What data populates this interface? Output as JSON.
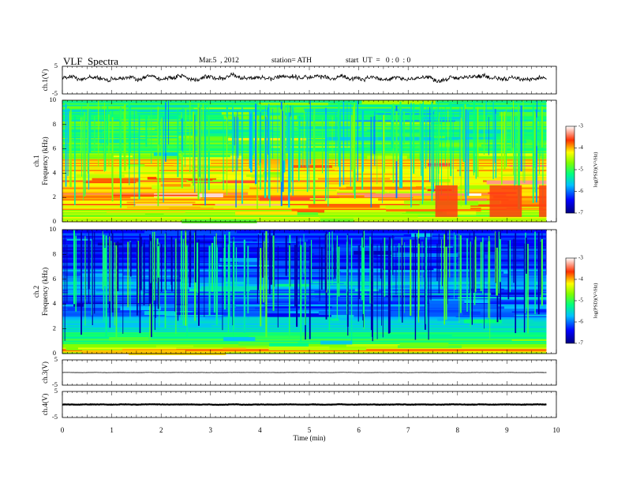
{
  "header": {
    "title": "VLF  Spectra",
    "date": "Mar.5  , 2012",
    "station": "station= ATH",
    "start": "start  UT  =   0 : 0  : 0"
  },
  "chart_data": [
    {
      "type": "line",
      "ylabel": "ch.1(V)",
      "ylim": [
        -5,
        5
      ],
      "yticks": [
        "5",
        "-5"
      ],
      "xlim": [
        0,
        10
      ],
      "x_end": 9.8,
      "level": 0.75,
      "amplitude": 1.1,
      "color": "#000000"
    },
    {
      "type": "heatmap",
      "ylabel_1": "ch.1",
      "ylabel_2": "Frequency  (kHz)",
      "ylim": [
        0,
        10
      ],
      "yticks": [
        "0",
        "2",
        "4",
        "6",
        "8",
        "10"
      ],
      "xlim": [
        0,
        10
      ],
      "x_end": 9.8,
      "colorbar": {
        "ticks": [
          "-3",
          "-4",
          "-5",
          "-6",
          "-7"
        ],
        "range": [
          -7,
          -3
        ],
        "label": "log(PSD)(V²/Hz)"
      },
      "level_profile": [
        {
          "f": 0.0,
          "v": -4.2
        },
        {
          "f": 0.4,
          "v": -4.6
        },
        {
          "f": 1.0,
          "v": -4.4
        },
        {
          "f": 2.0,
          "v": -3.9
        },
        {
          "f": 3.0,
          "v": -4.0
        },
        {
          "f": 4.0,
          "v": -4.4
        },
        {
          "f": 4.8,
          "v": -4.0
        },
        {
          "f": 5.2,
          "v": -4.7
        },
        {
          "f": 6.0,
          "v": -5.0
        },
        {
          "f": 7.0,
          "v": -5.2
        },
        {
          "f": 8.5,
          "v": -5.3
        },
        {
          "f": 10.0,
          "v": -5.2
        }
      ]
    },
    {
      "type": "heatmap",
      "ylabel_1": "ch.2",
      "ylabel_2": "Frequency  (kHz)",
      "ylim": [
        0,
        10
      ],
      "yticks": [
        "0",
        "2",
        "4",
        "6",
        "8",
        "10"
      ],
      "xlim": [
        0,
        10
      ],
      "x_end": 9.8,
      "colorbar": {
        "ticks": [
          "-3",
          "-4",
          "-5",
          "-6",
          "-7"
        ],
        "range": [
          -7,
          -3
        ],
        "label": "log(PSD)(V²/Hz)"
      },
      "level_profile": [
        {
          "f": 0.0,
          "v": -4.6
        },
        {
          "f": 0.3,
          "v": -3.6
        },
        {
          "f": 0.6,
          "v": -4.8
        },
        {
          "f": 1.5,
          "v": -5.3
        },
        {
          "f": 2.5,
          "v": -5.7
        },
        {
          "f": 3.5,
          "v": -6.0
        },
        {
          "f": 4.5,
          "v": -6.2
        },
        {
          "f": 5.5,
          "v": -5.8
        },
        {
          "f": 6.5,
          "v": -6.2
        },
        {
          "f": 8.0,
          "v": -6.4
        },
        {
          "f": 10.0,
          "v": -6.2
        }
      ]
    },
    {
      "type": "line",
      "ylabel": "ch.3(V)",
      "ylim": [
        -5,
        5
      ],
      "yticks": [
        "5",
        "-5"
      ],
      "xlim": [
        0,
        10
      ],
      "x_end": 9.8,
      "level": 0.0,
      "amplitude": 0.06,
      "color": "#000000"
    },
    {
      "type": "line",
      "ylabel": "ch.4(V)",
      "ylim": [
        -5,
        5
      ],
      "yticks": [
        "5",
        "-5"
      ],
      "xlim": [
        0,
        10
      ],
      "x_end": 9.8,
      "level": 0.0,
      "amplitude": 0.12,
      "color": "#000000"
    }
  ],
  "x_axis": {
    "label": "Time  (min)",
    "ticks": [
      "0",
      "1",
      "2",
      "3",
      "4",
      "5",
      "6",
      "7",
      "8",
      "9",
      "10"
    ]
  }
}
